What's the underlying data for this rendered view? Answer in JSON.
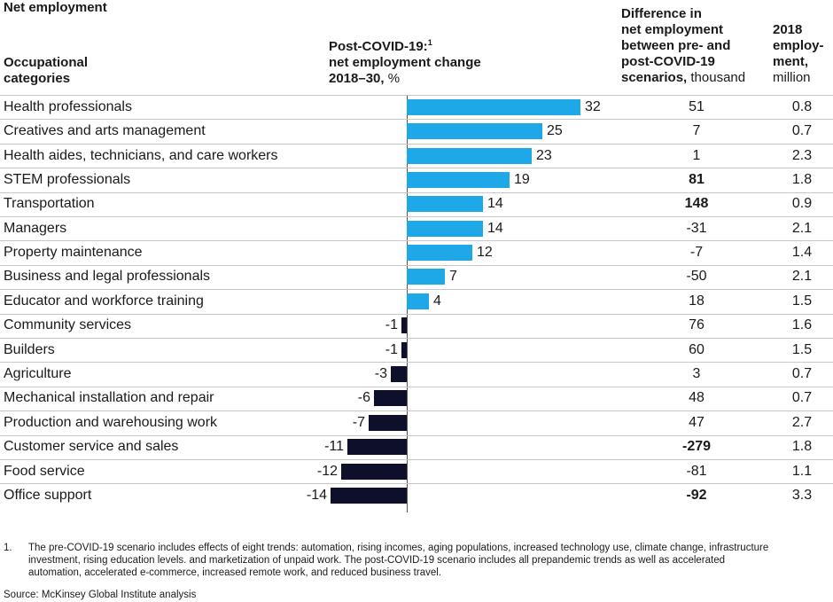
{
  "header": {
    "title": "Net employment",
    "col_category_line1": "Occupational",
    "col_category_line2": "categories",
    "col_change_line1": "Post-COVID-19:",
    "col_change_sup": "1",
    "col_change_line2": "net employment change",
    "col_change_line3_bold": "2018–30,",
    "col_change_line3_unit": " %",
    "col_diff_line1": "Difference in",
    "col_diff_line2": "net employment",
    "col_diff_line3": "between pre- and",
    "col_diff_line4": "post-COVID-19",
    "col_diff_line5_bold": "scenarios,",
    "col_diff_line5_unit": " thousand",
    "col_emp_line1": "2018",
    "col_emp_line2": "employ-",
    "col_emp_line3": "ment,",
    "col_emp_line4": "million"
  },
  "colors": {
    "positive": "#1fa8e8",
    "negative": "#0d0f2b",
    "divider": "#c8c8c8"
  },
  "chart_data": {
    "type": "bar",
    "orientation": "horizontal",
    "categories": [
      "Health professionals",
      "Creatives and arts management",
      "Health aides, technicians, and care workers",
      "STEM professionals",
      "Transportation",
      "Managers",
      "Property maintenance",
      "Business and legal professionals",
      "Educator and workforce training",
      "Community services",
      "Builders",
      "Agriculture",
      "Mechanical installation and repair",
      "Production and warehousing work",
      "Customer service and sales",
      "Food service",
      "Office support"
    ],
    "values": [
      32,
      25,
      23,
      19,
      14,
      14,
      12,
      7,
      4,
      -1,
      -1,
      -3,
      -6,
      -7,
      -11,
      -12,
      -14
    ],
    "difference_thousand": [
      51,
      7,
      1,
      81,
      148,
      -31,
      -7,
      -50,
      18,
      76,
      60,
      3,
      48,
      47,
      -279,
      -81,
      -92
    ],
    "difference_bold": [
      false,
      false,
      false,
      true,
      true,
      false,
      false,
      false,
      false,
      false,
      false,
      false,
      false,
      false,
      true,
      false,
      true
    ],
    "employment_2018_million": [
      "0.8",
      "0.7",
      "2.3",
      "1.8",
      "0.9",
      "2.1",
      "1.4",
      "2.1",
      "1.5",
      "1.6",
      "1.5",
      "0.7",
      "0.7",
      "2.7",
      "1.8",
      "1.1",
      "3.3"
    ]
  },
  "footnote": {
    "marker": "1.",
    "line1": "The pre-COVID-19 scenario includes effects of eight trends: automation, rising incomes, aging populations, increased technology use, climate change, infrastructure",
    "line2": "investment, rising education levels. and marketization of unpaid work. The post-COVID-19 scenario includes all prepandemic trends as well as accelerated",
    "line3": "automation, accelerated e-commerce, increased remote work, and reduced business travel."
  },
  "source": "Source: McKinsey Global Institute analysis"
}
